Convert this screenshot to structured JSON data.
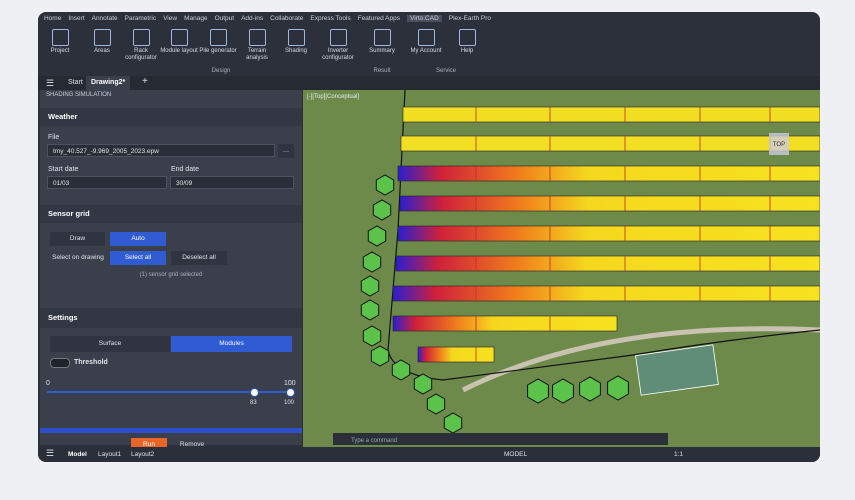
{
  "menu_tabs": [
    "Home",
    "Insert",
    "Annotate",
    "Parametric",
    "View",
    "Manage",
    "Output",
    "Add-ins",
    "Collaborate",
    "Express Tools",
    "Featured Apps",
    "Virto.CAD",
    "Plex-Earth Pro"
  ],
  "ribbon": {
    "buttons": [
      "Project",
      "Areas",
      "Rack configurator",
      "Module layout",
      "Pile generator",
      "Terrain analysis",
      "Shading",
      "Inverter configurator",
      "Summary",
      "My Account",
      "Help"
    ],
    "groups": [
      "Design",
      "Result",
      "Service"
    ]
  },
  "doc_tabs": [
    "Start",
    "Drawing2*"
  ],
  "panel": {
    "title": "SHADING SIMULATION",
    "weather": {
      "header": "Weather",
      "file_label": "File",
      "file": "tmy_40.527_-9.969_2005_2023.epw",
      "start_label": "Start date",
      "start": "01/03",
      "end_label": "End date",
      "end": "30/09"
    },
    "sensor_grid": {
      "header": "Sensor grid",
      "draw": "Draw",
      "auto": "Auto",
      "select_on_drawing": "Select on drawing",
      "select_all": "Select all",
      "deselect_all": "Deselect all",
      "status": "(1) sensor grid selected"
    },
    "settings": {
      "header": "Settings",
      "surface": "Surface",
      "modules": "Modules",
      "threshold": "Threshold",
      "min": "0",
      "max": "100",
      "low": "83",
      "high": "100"
    },
    "run": "Run",
    "remove": "Remove"
  },
  "viewport": {
    "label": "[-][Top][Conceptual]",
    "viewcube": "TOP",
    "command": "Type a command"
  },
  "status_bar": {
    "tabs": [
      "Model",
      "Layout1",
      "Layout2"
    ],
    "model": "MODEL",
    "scale": "1:1"
  }
}
